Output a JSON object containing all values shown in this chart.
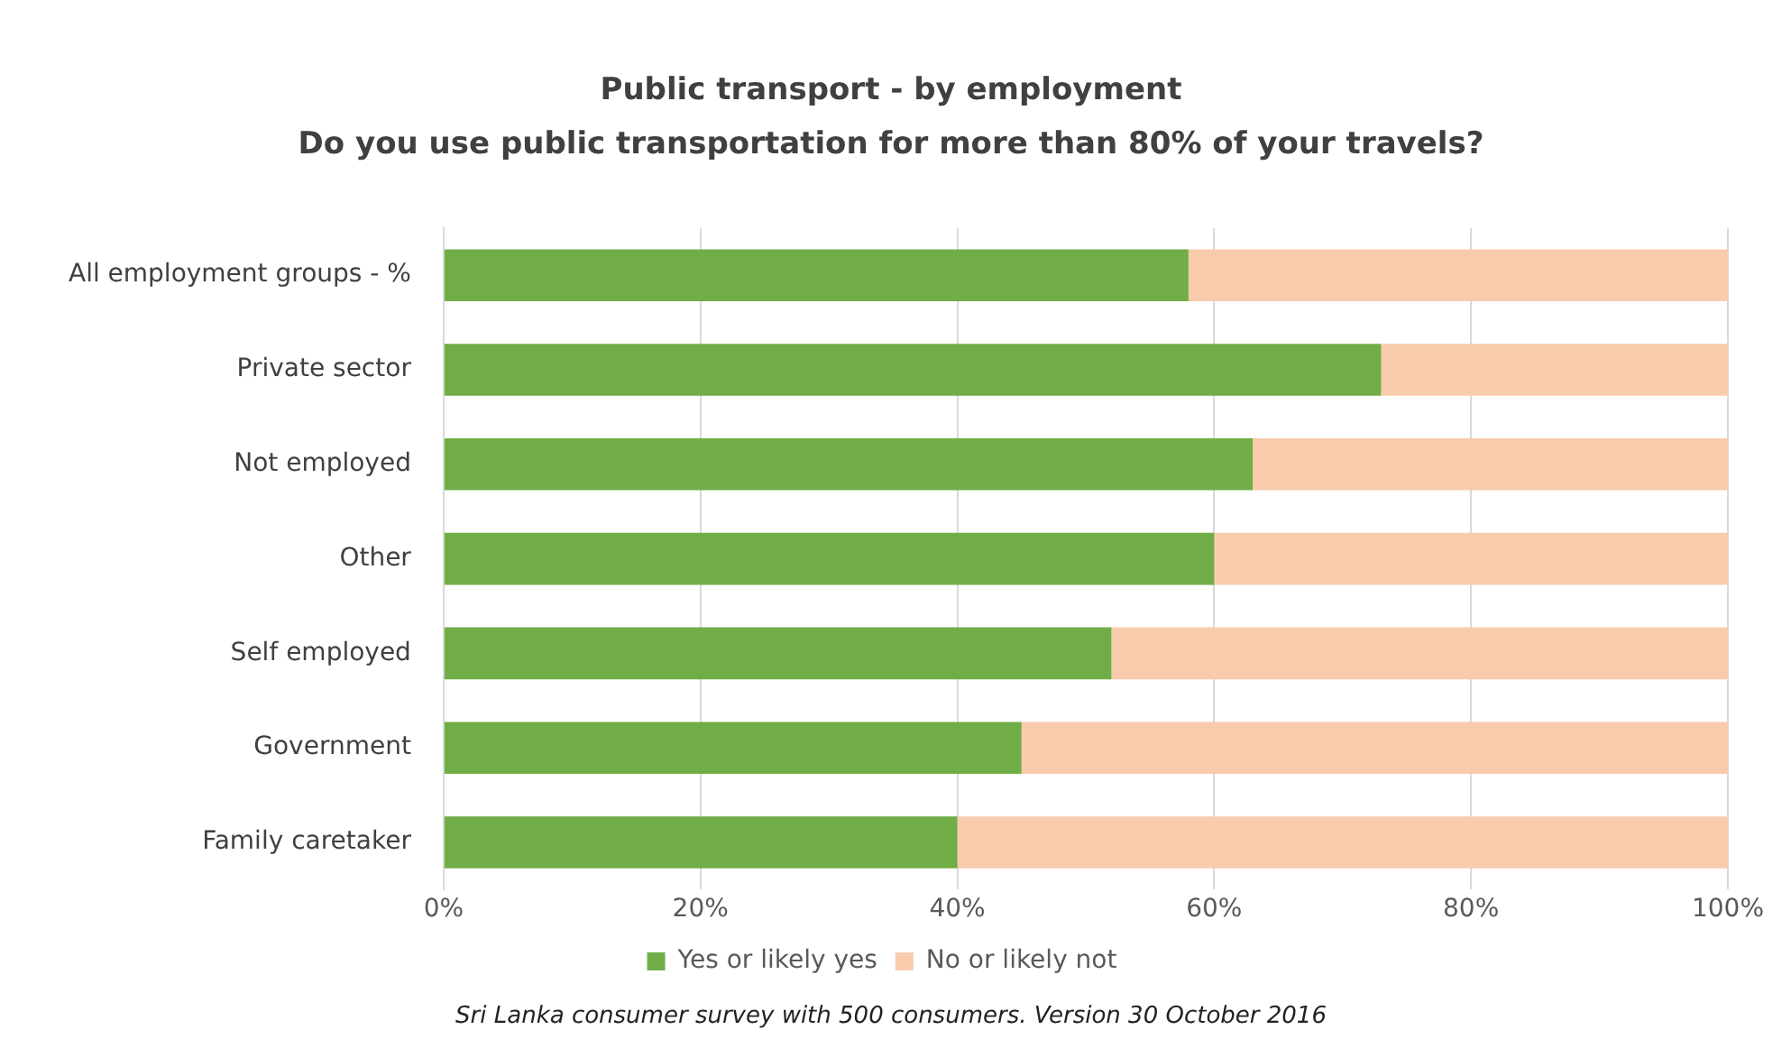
{
  "chart_data": {
    "type": "bar",
    "orientation": "horizontal",
    "stacked": true,
    "title": "Public transport - by employment",
    "subtitle": "Do you use public transportation for more than 80% of your travels?",
    "categories": [
      "All employment groups - %",
      "Private sector",
      "Not employed",
      "Other",
      "Self employed",
      "Government",
      "Family caretaker"
    ],
    "series": [
      {
        "name": "Yes or likely yes",
        "color": "#70ad47",
        "values": [
          58,
          73,
          63,
          60,
          52,
          45,
          40
        ]
      },
      {
        "name": "No or likely not",
        "color": "#f8cbad",
        "values": [
          42,
          27,
          37,
          40,
          48,
          55,
          60
        ]
      }
    ],
    "xlim": [
      0,
      100
    ],
    "xticks": [
      {
        "value": 0,
        "label": "0%"
      },
      {
        "value": 20,
        "label": "20%"
      },
      {
        "value": 40,
        "label": "40%"
      },
      {
        "value": 60,
        "label": "60%"
      },
      {
        "value": 80,
        "label": "80%"
      },
      {
        "value": 100,
        "label": "100%"
      }
    ],
    "grid": "x",
    "legend": "bottom",
    "annotations": [
      "Sri Lanka consumer survey with 500 consumers. Version 30 October 2016"
    ]
  }
}
